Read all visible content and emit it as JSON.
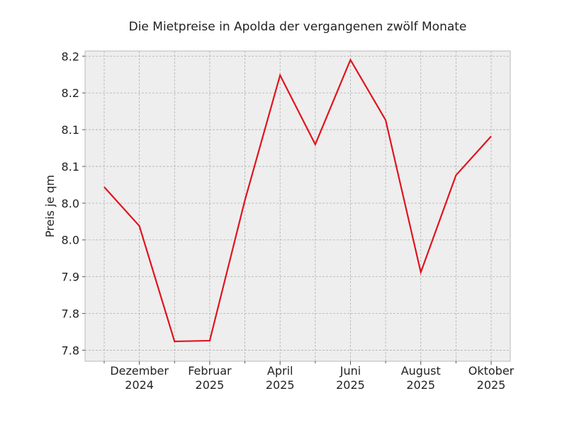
{
  "chart_data": {
    "type": "line",
    "title": "Die Mietpreise in Apolda der vergangenen zwölf Monate",
    "y_label": "Preis je qm",
    "categories": [
      null,
      "Dezember 2024",
      null,
      "Februar 2025",
      null,
      "April 2025",
      null,
      "Juni 2025",
      null,
      "August 2025",
      null,
      "Oktober 2025"
    ],
    "series": [
      {
        "name": "Preis je qm",
        "color": "#e0141e",
        "values": [
          8.022,
          7.969,
          7.812,
          7.813,
          8.004,
          8.174,
          8.08,
          8.195,
          8.113,
          7.906,
          8.038,
          8.091
        ]
      }
    ],
    "ylim": [
      7.785,
      8.207
    ],
    "yticks": [
      {
        "value": 7.8,
        "label": "7.8"
      },
      {
        "value": 7.85,
        "label": "7.8"
      },
      {
        "value": 7.9,
        "label": "7.9"
      },
      {
        "value": 7.95,
        "label": "8.0"
      },
      {
        "value": 8.0,
        "label": "8.0"
      },
      {
        "value": 8.05,
        "label": "8.1"
      },
      {
        "value": 8.1,
        "label": "8.1"
      },
      {
        "value": 8.15,
        "label": "8.2"
      },
      {
        "value": 8.2,
        "label": "8.2"
      }
    ],
    "grid": true
  }
}
